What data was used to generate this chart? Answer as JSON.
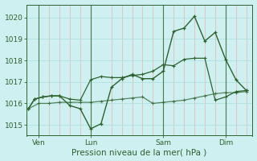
{
  "bg_color": "#cff0f0",
  "grid_color_h": "#b0e0e0",
  "grid_color_v_minor": "#e8b0b0",
  "grid_color_v_major": "#4a7a4a",
  "line_color": "#2d622d",
  "xlabel": "Pression niveau de la mer( hPa )",
  "ylim": [
    1014.5,
    1020.6
  ],
  "yticks": [
    1015,
    1016,
    1017,
    1018,
    1019,
    1020
  ],
  "ylabel_fontsize": 6.5,
  "xlabel_fontsize": 7.5,
  "tick_fontsize": 6.5,
  "xtick_labels": [
    "Ven",
    "Lun",
    "Sam",
    "Dim"
  ],
  "xtick_positions": [
    0.5,
    3.0,
    6.5,
    9.5
  ],
  "s1_x": [
    0.0,
    0.3,
    0.7,
    1.1,
    1.5,
    2.0,
    2.5,
    3.0,
    3.5,
    4.0,
    4.5,
    5.0,
    5.5,
    6.0,
    6.5,
    7.0,
    7.5,
    8.0,
    8.5,
    9.0,
    9.5,
    10.0,
    10.5
  ],
  "s1_y": [
    1015.75,
    1016.2,
    1016.3,
    1016.35,
    1016.35,
    1015.9,
    1015.75,
    1014.82,
    1015.05,
    1016.75,
    1017.15,
    1017.35,
    1017.15,
    1017.15,
    1017.5,
    1019.35,
    1019.5,
    1020.05,
    1018.9,
    1019.3,
    1018.05,
    1017.1,
    1016.6
  ],
  "s2_x": [
    0.0,
    0.3,
    0.7,
    1.1,
    1.5,
    2.0,
    2.5,
    3.0,
    3.5,
    4.0,
    4.5,
    5.0,
    5.5,
    6.0,
    6.5,
    7.0,
    7.5,
    8.0,
    8.5,
    9.0,
    9.5,
    10.0,
    10.5
  ],
  "s2_y": [
    1015.75,
    1016.2,
    1016.3,
    1016.35,
    1016.35,
    1016.2,
    1016.15,
    1017.1,
    1017.25,
    1017.2,
    1017.2,
    1017.3,
    1017.35,
    1017.5,
    1017.8,
    1017.75,
    1018.05,
    1018.1,
    1018.1,
    1016.15,
    1016.3,
    1016.55,
    1016.6
  ],
  "s3_x": [
    0.0,
    0.5,
    1.0,
    1.5,
    2.0,
    2.5,
    3.0,
    3.5,
    4.0,
    4.5,
    5.0,
    5.5,
    6.0,
    6.5,
    7.0,
    7.5,
    8.0,
    8.5,
    9.0,
    9.5,
    10.0,
    10.5
  ],
  "s3_y": [
    1015.75,
    1016.0,
    1016.0,
    1016.05,
    1016.05,
    1016.05,
    1016.05,
    1016.1,
    1016.15,
    1016.2,
    1016.25,
    1016.3,
    1016.0,
    1016.05,
    1016.1,
    1016.15,
    1016.25,
    1016.35,
    1016.45,
    1016.5,
    1016.5,
    1016.55
  ],
  "xlim": [
    -0.1,
    10.8
  ],
  "major_vlines": [
    0.5,
    3.0,
    6.5,
    9.5
  ],
  "minor_vlines": [
    1.0,
    1.5,
    2.0,
    2.5,
    4.0,
    4.5,
    5.0,
    5.5,
    6.0,
    7.0,
    7.5,
    8.0,
    8.5,
    9.0,
    10.0,
    10.5
  ]
}
